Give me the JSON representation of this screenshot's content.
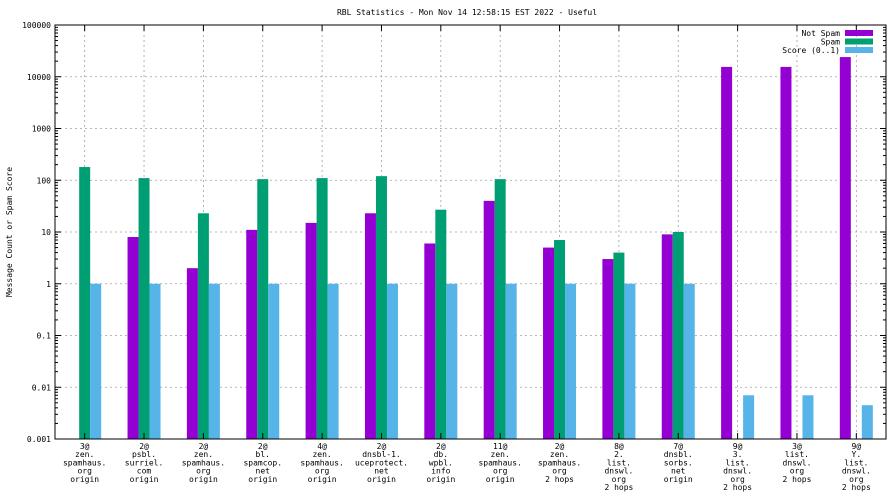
{
  "chart_data": {
    "type": "bar",
    "title": "RBL Statistics - Mon Nov 14 12:58:15 EST 2022 - Useful",
    "ylabel": "Message Count or Spam Score",
    "xlabel": "",
    "yscale": "log",
    "ylim": [
      0.001,
      100000
    ],
    "grid": true,
    "legend_position": "top-right",
    "yticks": [
      {
        "value": 0.001,
        "label": "0.001"
      },
      {
        "value": 0.01,
        "label": "0.01"
      },
      {
        "value": 0.1,
        "label": "0.1"
      },
      {
        "value": 1,
        "label": "1"
      },
      {
        "value": 10,
        "label": "10"
      },
      {
        "value": 100,
        "label": "100"
      },
      {
        "value": 1000,
        "label": "1000"
      },
      {
        "value": 10000,
        "label": "10000"
      },
      {
        "value": 100000,
        "label": "100000"
      }
    ],
    "categories": [
      [
        "3@",
        "zen.",
        "spamhaus.",
        "org",
        "origin"
      ],
      [
        "2@",
        "psbl.",
        "surriel.",
        "com",
        "origin"
      ],
      [
        "2@",
        "zen.",
        "spamhaus.",
        "org",
        "origin"
      ],
      [
        "2@",
        "bl.",
        "spamcop.",
        "net",
        "origin"
      ],
      [
        "4@",
        "zen.",
        "spamhaus.",
        "org",
        "origin"
      ],
      [
        "2@",
        "dnsbl-1.",
        "uceprotect.",
        "net",
        "origin"
      ],
      [
        "2@",
        "db.",
        "wpbl.",
        "info",
        "origin"
      ],
      [
        "11@",
        "zen.",
        "spamhaus.",
        "org",
        "origin"
      ],
      [
        "2@",
        "zen.",
        "spamhaus.",
        "org",
        "2 hops"
      ],
      [
        "8@",
        "2.",
        "list.",
        "dnswl.",
        "org",
        "2 hops"
      ],
      [
        "7@",
        "dnsbl.",
        "sorbs.",
        "net",
        "origin"
      ],
      [
        "9@",
        "3.",
        "list.",
        "dnswl.",
        "org",
        "2 hops"
      ],
      [
        "3@",
        "list.",
        "dnswl.",
        "org",
        "2 hops"
      ],
      [
        "9@",
        "Y.",
        "list.",
        "dnswl.",
        "org",
        "2 hops"
      ]
    ],
    "series": [
      {
        "name": "Not Spam",
        "color": "#9400d3",
        "values": [
          null,
          8,
          2,
          11,
          15,
          23,
          6,
          40,
          5,
          3,
          9,
          15500,
          15500,
          24000
        ]
      },
      {
        "name": "Spam",
        "color": "#009e73",
        "values": [
          180,
          110,
          23,
          105,
          110,
          120,
          27,
          105,
          7,
          4,
          10,
          null,
          null,
          null
        ]
      },
      {
        "name": "Score (0..1)",
        "color": "#56b4e9",
        "values": [
          1,
          1,
          1,
          1,
          1,
          1,
          1,
          1,
          1,
          1,
          1,
          0.007,
          0.007,
          0.0045
        ]
      }
    ]
  }
}
